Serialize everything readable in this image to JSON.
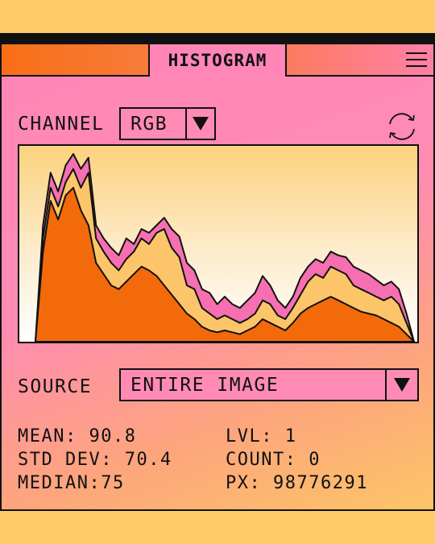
{
  "panel": {
    "title": "HISTOGRAM",
    "menu_icon": "hamburger-menu-icon"
  },
  "channel": {
    "label": "CHANNEL",
    "selected": "RGB",
    "refresh_icon": "refresh-icon"
  },
  "source": {
    "label": "SOURCE",
    "selected": "ENTIRE IMAGE"
  },
  "stats": {
    "mean": "MEAN: 90.8",
    "std_dev": "STD DEV: 70.4",
    "median": "MEDIAN:75",
    "level": "LVL: 1",
    "count": "COUNT: 0",
    "pixels": "PX: 98776291"
  },
  "colors": {
    "panel_pink": "#ff86b6",
    "tab_orange": "#f96e16",
    "background_yellow": "#fcca67",
    "hist_pink": "#f56fb1",
    "hist_yellow": "#fcc569",
    "hist_orange": "#f36a0a"
  },
  "chart_data": {
    "type": "area",
    "x": [
      0,
      2,
      4,
      6,
      8,
      10,
      12,
      14,
      16,
      18,
      20,
      22,
      24,
      26,
      28,
      30,
      32,
      34,
      36,
      38,
      40,
      42,
      44,
      46,
      48,
      50,
      52,
      54,
      56,
      58,
      60,
      62,
      64,
      66,
      68,
      70,
      72,
      74,
      76,
      78,
      80,
      82,
      84,
      86,
      88,
      90,
      92,
      94,
      96,
      98,
      100
    ],
    "series": [
      {
        "color": "#f56fb1",
        "values": [
          0,
          62,
          90,
          80,
          94,
          100,
          92,
          98,
          62,
          55,
          50,
          46,
          55,
          52,
          60,
          58,
          62,
          66,
          60,
          56,
          42,
          38,
          28,
          26,
          20,
          24,
          20,
          18,
          22,
          26,
          35,
          30,
          22,
          18,
          24,
          34,
          40,
          44,
          42,
          48,
          46,
          45,
          40,
          38,
          36,
          33,
          30,
          32,
          28,
          15,
          0
        ]
      },
      {
        "color": "#fcc569",
        "values": [
          0,
          55,
          82,
          72,
          85,
          92,
          82,
          90,
          55,
          48,
          42,
          38,
          44,
          48,
          55,
          52,
          58,
          60,
          50,
          45,
          30,
          28,
          18,
          15,
          12,
          14,
          12,
          10,
          12,
          15,
          22,
          20,
          14,
          12,
          18,
          25,
          32,
          36,
          34,
          40,
          38,
          36,
          30,
          28,
          26,
          24,
          22,
          24,
          20,
          10,
          0
        ]
      },
      {
        "color": "#f36a0a",
        "values": [
          0,
          48,
          75,
          65,
          78,
          82,
          70,
          62,
          42,
          36,
          30,
          28,
          32,
          36,
          40,
          38,
          35,
          30,
          25,
          20,
          15,
          12,
          8,
          6,
          5,
          6,
          5,
          4,
          6,
          8,
          12,
          10,
          8,
          6,
          10,
          15,
          18,
          20,
          22,
          24,
          22,
          20,
          18,
          16,
          15,
          14,
          12,
          10,
          8,
          4,
          0
        ]
      }
    ]
  }
}
